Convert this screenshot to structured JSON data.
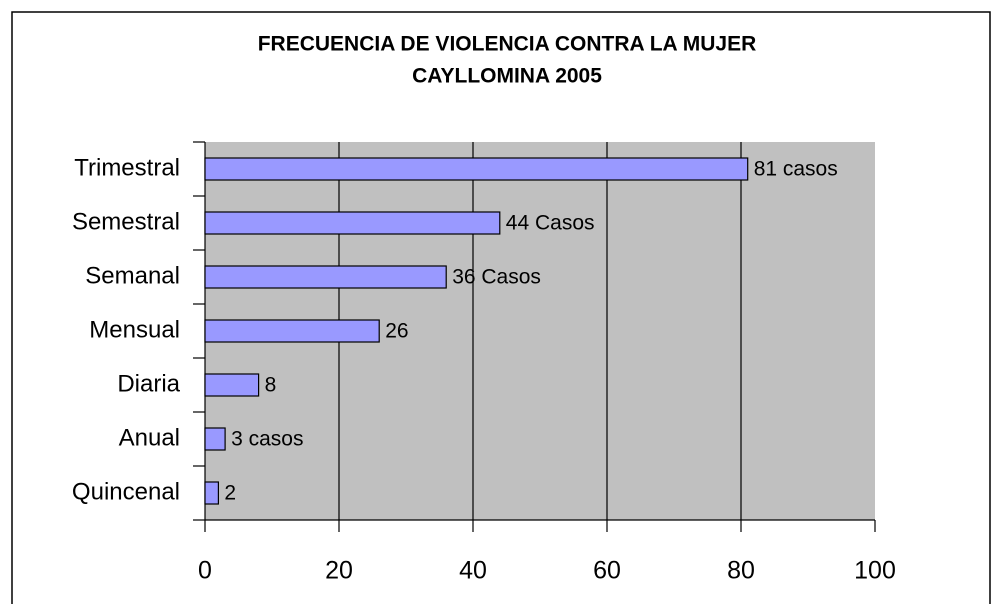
{
  "chart_data": {
    "type": "hbar",
    "title": "FRECUENCIA DE VIOLENCIA CONTRA LA MUJER",
    "subtitle": "CAYLLOMINA 2005",
    "categories": [
      "Trimestral",
      "Semestral",
      "Semanal",
      "Mensual",
      "Diaria",
      "Anual",
      "Quincenal"
    ],
    "values": [
      81,
      44,
      36,
      26,
      8,
      3,
      2
    ],
    "value_labels": [
      "81 casos",
      "44 Casos",
      "36 Casos",
      "26",
      "8",
      "3 casos",
      "2"
    ],
    "color": "#9999ff",
    "xlim": [
      0,
      100
    ],
    "xticks": [
      0,
      20,
      40,
      60,
      80,
      100
    ],
    "grid": true
  }
}
